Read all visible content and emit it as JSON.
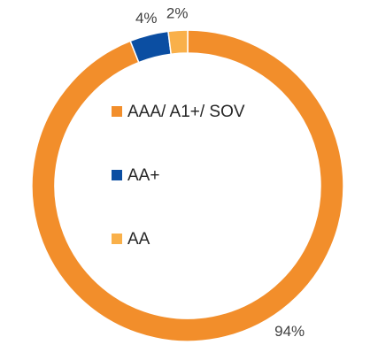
{
  "chart_data": {
    "type": "pie",
    "donut": true,
    "categories": [
      "AAA/ A1+/ SOV",
      "AA+",
      "AA"
    ],
    "values": [
      94,
      4,
      2
    ],
    "data_labels": [
      "94%",
      "4%",
      "2%"
    ],
    "colors": [
      "#F28E2B",
      "#0B4EA2",
      "#F9B04A"
    ],
    "legend": [
      {
        "name": "AAA/ A1+/ SOV",
        "color": "#F28E2B"
      },
      {
        "name": "AA+",
        "color": "#0B4EA2"
      },
      {
        "name": "AA",
        "color": "#F9B04A"
      }
    ],
    "legend_placement": "center",
    "title": "",
    "xlabel": "",
    "ylabel": ""
  }
}
